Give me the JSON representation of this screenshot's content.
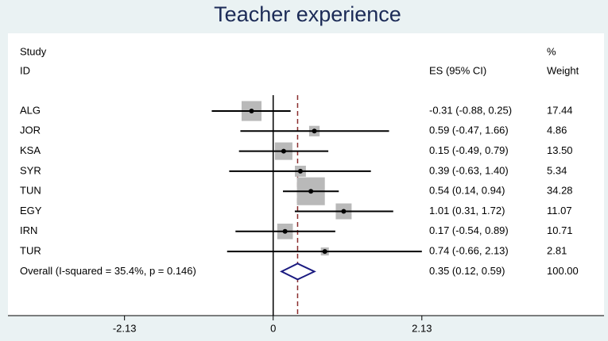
{
  "chart_data": {
    "type": "forest",
    "title": "Teacher experience",
    "column_headers": {
      "study": "Study",
      "id": "ID",
      "es": "ES (95% CI)",
      "pct": "%",
      "weight": "Weight"
    },
    "categories": [
      "ALG",
      "JOR",
      "KSA",
      "SYR",
      "TUN",
      "EGY",
      "IRN",
      "TUR"
    ],
    "values": [
      -0.31,
      0.59,
      0.15,
      0.39,
      0.54,
      1.01,
      0.17,
      0.74
    ],
    "ci_low": [
      -0.88,
      -0.47,
      -0.49,
      -0.63,
      0.14,
      0.31,
      -0.54,
      -0.66
    ],
    "ci_high": [
      0.25,
      1.66,
      0.79,
      1.4,
      0.94,
      1.72,
      0.89,
      2.13
    ],
    "value_labels": [
      "-0.31 (-0.88, 0.25)",
      "0.59 (-0.47, 1.66)",
      "0.15 (-0.49, 0.79)",
      "0.39 (-0.63, 1.40)",
      "0.54 (0.14, 0.94)",
      "1.01 (0.31, 1.72)",
      "0.17 (-0.54, 0.89)",
      "0.74 (-0.66, 2.13)"
    ],
    "weights": [
      17.44,
      4.86,
      13.5,
      5.34,
      34.28,
      11.07,
      10.71,
      2.81
    ],
    "weight_labels": [
      "17.44",
      "4.86",
      "13.50",
      "5.34",
      "34.28",
      "11.07",
      "10.71",
      "2.81"
    ],
    "overall": {
      "label": "Overall  (I-squared = 35.4%, p = 0.146)",
      "value": 0.35,
      "ci_low": 0.12,
      "ci_high": 0.59,
      "value_label": "0.35 (0.12, 0.59)",
      "weight": 100,
      "weight_label": "100.00"
    },
    "box_color": "#b9b9b9",
    "diamond_color": "#1a1a80",
    "line_color": "#8b2d2d",
    "xlim": [
      -3.8,
      4.74
    ],
    "xticks": [
      -2.13,
      0,
      2.13
    ]
  }
}
